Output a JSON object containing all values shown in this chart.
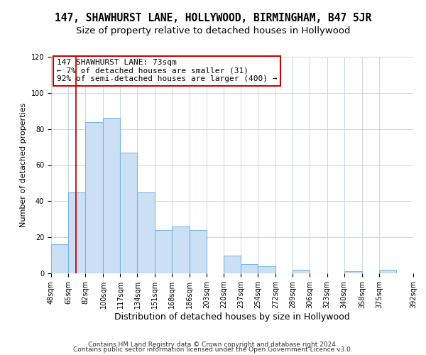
{
  "title": "147, SHAWHURST LANE, HOLLYWOOD, BIRMINGHAM, B47 5JR",
  "subtitle": "Size of property relative to detached houses in Hollywood",
  "xlabel": "Distribution of detached houses by size in Hollywood",
  "ylabel": "Number of detached properties",
  "bar_left_edges": [
    48,
    65,
    82,
    100,
    117,
    134,
    151,
    168,
    186,
    203,
    220,
    237,
    254,
    272,
    289,
    306,
    323,
    340,
    358,
    375
  ],
  "bar_heights": [
    16,
    45,
    84,
    86,
    67,
    45,
    24,
    26,
    24,
    0,
    10,
    5,
    4,
    0,
    2,
    0,
    0,
    1,
    0,
    2
  ],
  "bar_widths": [
    17,
    17,
    18,
    17,
    17,
    17,
    17,
    18,
    17,
    17,
    17,
    17,
    18,
    17,
    17,
    17,
    17,
    18,
    17,
    17
  ],
  "tick_labels": [
    "48sqm",
    "65sqm",
    "82sqm",
    "100sqm",
    "117sqm",
    "134sqm",
    "151sqm",
    "168sqm",
    "186sqm",
    "203sqm",
    "220sqm",
    "237sqm",
    "254sqm",
    "272sqm",
    "289sqm",
    "306sqm",
    "323sqm",
    "340sqm",
    "358sqm",
    "375sqm",
    "392sqm"
  ],
  "bar_color": "#cce0f5",
  "bar_edge_color": "#7ab8e0",
  "red_line_x": 73,
  "annotation_title": "147 SHAWHURST LANE: 73sqm",
  "annotation_line1": "← 7% of detached houses are smaller (31)",
  "annotation_line2": "92% of semi-detached houses are larger (400) →",
  "annotation_box_color": "#ffffff",
  "annotation_box_edge_color": "#cc0000",
  "ylim": [
    0,
    120
  ],
  "yticks": [
    0,
    20,
    40,
    60,
    80,
    100,
    120
  ],
  "footer1": "Contains HM Land Registry data © Crown copyright and database right 2024.",
  "footer2": "Contains public sector information licensed under the Open Government Licence v3.0.",
  "background_color": "#ffffff",
  "grid_color": "#c8d8e8",
  "title_fontsize": 10.5,
  "subtitle_fontsize": 9.5,
  "xlabel_fontsize": 9,
  "ylabel_fontsize": 8,
  "tick_fontsize": 7,
  "annotation_fontsize": 8,
  "footer_fontsize": 6.5
}
